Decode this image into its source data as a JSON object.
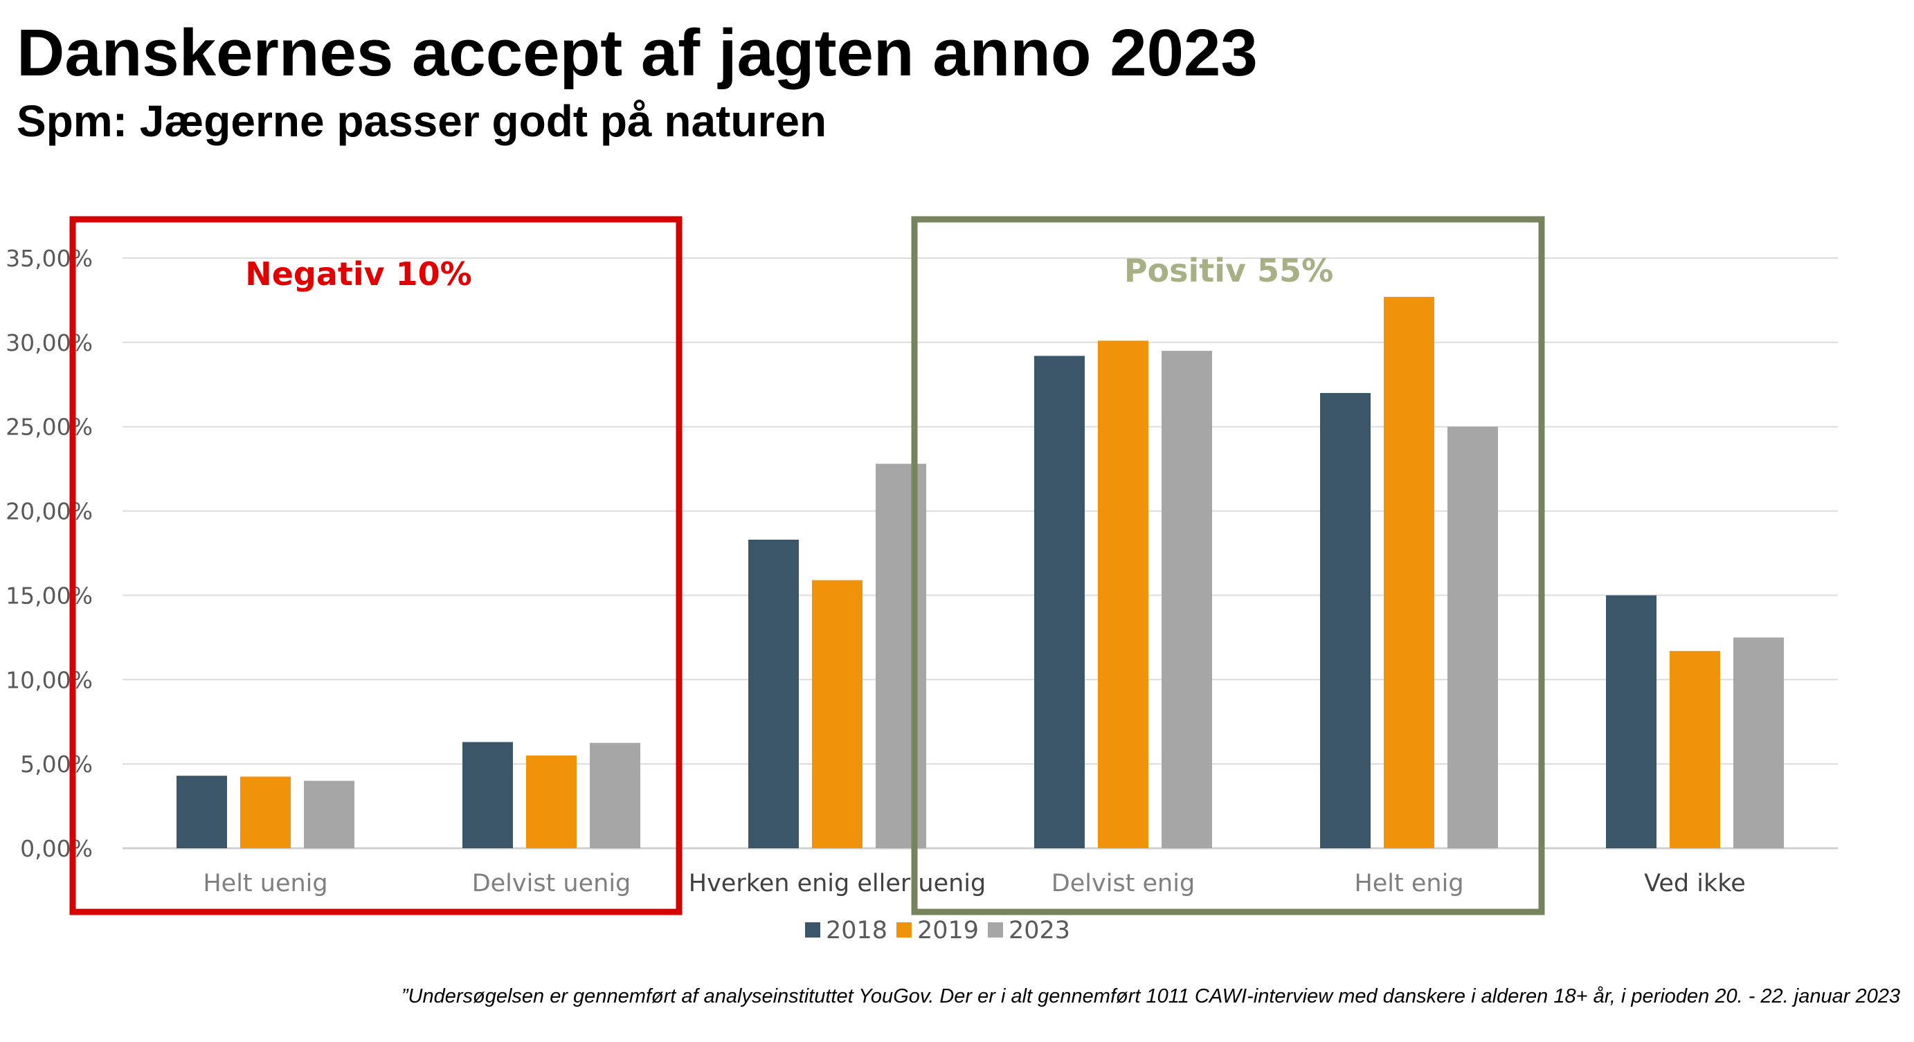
{
  "title": "Danskernes accept af jagten anno 2023",
  "subtitle": "Spm: Jægerne passer godt på naturen",
  "footnote": "”Undersøgelsen er gennemført af analyseinstituttet YouGov. Der er i alt gennemført 1011 CAWI-interview med danskere i alderen 18+ år, i perioden 20. - 22. januar 2023",
  "colors": {
    "2018": "#3b5669",
    "2019": "#f0920a",
    "2023": "#a6a6a6",
    "negative_box": "#d50000",
    "positive_box": "#76845d",
    "negative_text": "#e00000",
    "positive_text": "#a7b085"
  },
  "callouts": {
    "negative": "Negativ 10%",
    "positive": "Positiv 55%"
  },
  "chart_data": {
    "type": "bar",
    "categories": [
      "Helt uenig",
      "Delvist uenig",
      "Hverken enig eller uenig",
      "Delvist enig",
      "Helt enig",
      "Ved ikke"
    ],
    "series": [
      {
        "name": "2018",
        "values": [
          4.3,
          6.3,
          18.3,
          29.2,
          27.0,
          15.0
        ]
      },
      {
        "name": "2019",
        "values": [
          4.25,
          5.5,
          15.9,
          30.1,
          32.7,
          11.7
        ]
      },
      {
        "name": "2023",
        "values": [
          4.0,
          6.25,
          22.8,
          29.5,
          25.0,
          12.5
        ]
      }
    ],
    "ylim": [
      0,
      35
    ],
    "yticks": [
      0,
      5,
      10,
      15,
      20,
      25,
      30,
      35
    ],
    "ytick_labels": [
      "0,00%",
      "5,00%",
      "10,00%",
      "15,00%",
      "20,00%",
      "25,00%",
      "30,00%",
      "35,00%"
    ],
    "grid": true,
    "legend_position": "bottom",
    "unit": "%"
  }
}
